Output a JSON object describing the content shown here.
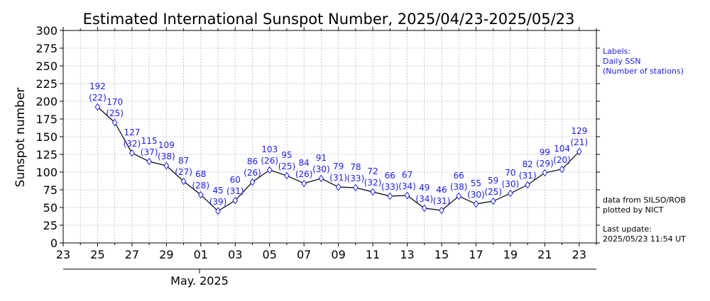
{
  "chart_data": {
    "type": "line",
    "title": "Estimated International Sunspot Number, 2025/04/23-2025/05/23",
    "xlabel": "",
    "ylabel": "Sunspot number",
    "ylim": [
      0,
      300
    ],
    "yticks": [
      0,
      25,
      50,
      75,
      100,
      125,
      150,
      175,
      200,
      225,
      250,
      275,
      300
    ],
    "xlim": [
      "2025-04-23",
      "2025-05-24"
    ],
    "xtick_labels": [
      "23",
      "25",
      "27",
      "29",
      "01",
      "03",
      "05",
      "07",
      "09",
      "11",
      "13",
      "15",
      "17",
      "19",
      "21",
      "23"
    ],
    "xtick_dates": [
      "2025-04-23",
      "2025-04-25",
      "2025-04-27",
      "2025-04-29",
      "2025-05-01",
      "2025-05-03",
      "2025-05-05",
      "2025-05-07",
      "2025-05-09",
      "2025-05-11",
      "2025-05-13",
      "2025-05-15",
      "2025-05-17",
      "2025-05-19",
      "2025-05-21",
      "2025-05-23"
    ],
    "month_label": "May. 2025",
    "grid": true,
    "line_color": "#000000",
    "marker_color": "#1a1aff",
    "label_color": "#1a1aff",
    "series": [
      {
        "x": [
          "2025-04-25",
          "2025-04-26",
          "2025-04-27",
          "2025-04-28",
          "2025-04-29",
          "2025-04-30",
          "2025-05-01",
          "2025-05-02",
          "2025-05-03",
          "2025-05-04",
          "2025-05-05",
          "2025-05-06",
          "2025-05-07",
          "2025-05-08",
          "2025-05-09",
          "2025-05-10",
          "2025-05-11",
          "2025-05-12",
          "2025-05-13",
          "2025-05-14",
          "2025-05-15",
          "2025-05-16",
          "2025-05-17",
          "2025-05-18",
          "2025-05-19",
          "2025-05-20",
          "2025-05-21",
          "2025-05-22",
          "2025-05-23"
        ],
        "values": [
          192,
          170,
          127,
          115,
          109,
          87,
          68,
          45,
          60,
          86,
          103,
          95,
          84,
          91,
          79,
          78,
          72,
          66,
          67,
          49,
          46,
          66,
          55,
          59,
          70,
          82,
          99,
          104,
          129
        ],
        "stations": [
          22,
          25,
          32,
          37,
          38,
          27,
          28,
          39,
          31,
          26,
          26,
          25,
          26,
          30,
          31,
          33,
          32,
          33,
          34,
          34,
          31,
          38,
          30,
          25,
          30,
          31,
          29,
          20,
          21
        ]
      }
    ]
  },
  "legend": {
    "line1": "Labels:",
    "line2": "Daily SSN",
    "line3": "(Number of stations)"
  },
  "source": {
    "line1": "data from SILSO/ROB",
    "line2": "plotted by NICT"
  },
  "update": {
    "line1": "Last update:",
    "line2": "2025/05/23 11:54 UT"
  }
}
